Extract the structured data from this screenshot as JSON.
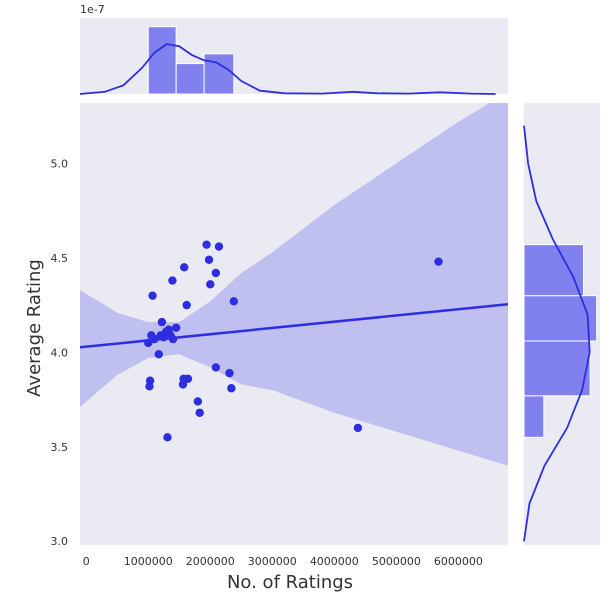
{
  "chart_data": {
    "type": "scatter",
    "title": "",
    "xlabel": "No. of Ratings",
    "ylabel": "Average Rating",
    "xlim": [
      -100000,
      6800000
    ],
    "ylim": [
      2.98,
      5.32
    ],
    "x_ticks": [
      0,
      1000000,
      2000000,
      3000000,
      4000000,
      5000000,
      6000000
    ],
    "x_tick_labels": [
      "0",
      "1000000",
      "2000000",
      "3000000",
      "4000000",
      "5000000",
      "6000000"
    ],
    "y_ticks": [
      3.0,
      3.5,
      4.0,
      4.5,
      5.0
    ],
    "y_tick_labels": [
      "3.0",
      "3.5",
      "4.0",
      "4.5",
      "5.0"
    ],
    "grid": true,
    "background": "#EAEAF2",
    "accent": "#2E2EE0",
    "points": [
      {
        "x": 1000000,
        "y": 4.05
      },
      {
        "x": 1020000,
        "y": 3.82
      },
      {
        "x": 1030000,
        "y": 3.85
      },
      {
        "x": 1050000,
        "y": 4.09
      },
      {
        "x": 1070000,
        "y": 4.3
      },
      {
        "x": 1100000,
        "y": 4.07
      },
      {
        "x": 1170000,
        "y": 3.99
      },
      {
        "x": 1200000,
        "y": 4.09
      },
      {
        "x": 1220000,
        "y": 4.16
      },
      {
        "x": 1250000,
        "y": 4.08
      },
      {
        "x": 1290000,
        "y": 4.11
      },
      {
        "x": 1310000,
        "y": 3.55
      },
      {
        "x": 1330000,
        "y": 4.12
      },
      {
        "x": 1360000,
        "y": 4.09
      },
      {
        "x": 1390000,
        "y": 4.38
      },
      {
        "x": 1400000,
        "y": 4.07
      },
      {
        "x": 1450000,
        "y": 4.13
      },
      {
        "x": 1560000,
        "y": 3.83
      },
      {
        "x": 1570000,
        "y": 3.86
      },
      {
        "x": 1580000,
        "y": 4.45
      },
      {
        "x": 1620000,
        "y": 4.25
      },
      {
        "x": 1640000,
        "y": 3.86
      },
      {
        "x": 1800000,
        "y": 3.74
      },
      {
        "x": 1830000,
        "y": 3.68
      },
      {
        "x": 1940000,
        "y": 4.57
      },
      {
        "x": 1980000,
        "y": 4.49
      },
      {
        "x": 2000000,
        "y": 4.36
      },
      {
        "x": 2090000,
        "y": 3.92
      },
      {
        "x": 2090000,
        "y": 4.42
      },
      {
        "x": 2140000,
        "y": 4.56
      },
      {
        "x": 2310000,
        "y": 3.89
      },
      {
        "x": 2340000,
        "y": 3.81
      },
      {
        "x": 2380000,
        "y": 4.27
      },
      {
        "x": 4380000,
        "y": 3.6
      },
      {
        "x": 5680000,
        "y": 4.48
      }
    ],
    "regression": {
      "intercept": 4.03,
      "slope": 3.3e-08
    },
    "confidence_band": [
      {
        "x": -100000,
        "lo": 3.71,
        "hi": 4.33
      },
      {
        "x": 500000,
        "lo": 3.88,
        "hi": 4.21
      },
      {
        "x": 1000000,
        "lo": 3.97,
        "hi": 4.16
      },
      {
        "x": 1500000,
        "lo": 3.99,
        "hi": 4.16
      },
      {
        "x": 2000000,
        "lo": 3.92,
        "hi": 4.27
      },
      {
        "x": 2500000,
        "lo": 3.83,
        "hi": 4.42
      },
      {
        "x": 3000000,
        "lo": 3.8,
        "hi": 4.53
      },
      {
        "x": 4000000,
        "lo": 3.68,
        "hi": 4.78
      },
      {
        "x": 5000000,
        "lo": 3.58,
        "hi": 5.0
      },
      {
        "x": 6000000,
        "lo": 3.48,
        "hi": 5.22
      },
      {
        "x": 6800000,
        "lo": 3.4,
        "hi": 5.38
      }
    ],
    "marginal_x": {
      "sci_label": "1e-7",
      "ymax": 3.5e-07,
      "bins": [
        {
          "x0": 1000000,
          "x1": 1450000,
          "density": 3.1e-07
        },
        {
          "x0": 1450000,
          "x1": 1900000,
          "density": 1.4e-07
        },
        {
          "x0": 1900000,
          "x1": 2380000,
          "density": 1.85e-07
        }
      ],
      "kde": [
        [
          -100000,
          0.0
        ],
        [
          300000,
          1e-08
        ],
        [
          600000,
          4e-08
        ],
        [
          900000,
          1.2e-07
        ],
        [
          1100000,
          1.9e-07
        ],
        [
          1300000,
          2.3e-07
        ],
        [
          1500000,
          2.2e-07
        ],
        [
          1700000,
          1.8e-07
        ],
        [
          1900000,
          1.55e-07
        ],
        [
          2100000,
          1.45e-07
        ],
        [
          2300000,
          1.1e-07
        ],
        [
          2500000,
          6e-08
        ],
        [
          2800000,
          1.5e-08
        ],
        [
          3200000,
          3e-09
        ],
        [
          3800000,
          2e-09
        ],
        [
          4300000,
          1e-08
        ],
        [
          4700000,
          3e-09
        ],
        [
          5200000,
          2e-09
        ],
        [
          5700000,
          8e-09
        ],
        [
          6200000,
          2e-09
        ],
        [
          6600000,
          0.0
        ]
      ]
    },
    "marginal_y": {
      "bins": [
        {
          "y0": 3.55,
          "y1": 3.77,
          "count": 3
        },
        {
          "y0": 3.77,
          "y1": 4.06,
          "count": 10
        },
        {
          "y0": 4.06,
          "y1": 4.3,
          "count": 11
        },
        {
          "y0": 4.3,
          "y1": 4.57,
          "count": 9
        }
      ],
      "max_count": 11.5,
      "kde": [
        [
          3.0,
          0.0
        ],
        [
          3.2,
          0.08
        ],
        [
          3.4,
          0.3
        ],
        [
          3.6,
          0.63
        ],
        [
          3.8,
          0.85
        ],
        [
          4.0,
          0.96
        ],
        [
          4.2,
          0.93
        ],
        [
          4.4,
          0.72
        ],
        [
          4.6,
          0.42
        ],
        [
          4.8,
          0.18
        ],
        [
          5.0,
          0.06
        ],
        [
          5.2,
          0.0
        ]
      ],
      "kde_scale": 1.0
    }
  }
}
